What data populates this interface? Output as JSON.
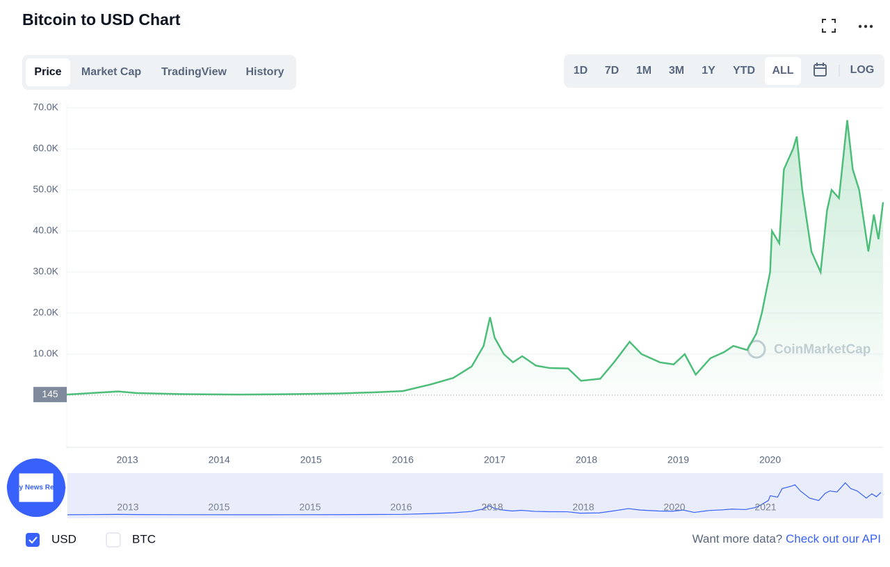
{
  "header": {
    "title": "Bitcoin to USD Chart"
  },
  "tabs": [
    "Price",
    "Market Cap",
    "TradingView",
    "History"
  ],
  "ranges": [
    "1D",
    "7D",
    "1M",
    "3M",
    "1Y",
    "YTD",
    "ALL"
  ],
  "log_button": "LOG",
  "currencies": [
    "USD",
    "BTC"
  ],
  "footer": {
    "prompt": "Want more data?",
    "link": "Check out our API"
  },
  "badge": "Daily News Recap",
  "chart_data": {
    "type": "line",
    "watermark": "CoinMarketCap",
    "x": [
      2012.34,
      2012.9,
      2013.1,
      2013.6,
      2014.2,
      2014.8,
      2015.3,
      2015.7,
      2016.0,
      2016.3,
      2016.55,
      2016.75,
      2016.88,
      2016.95,
      2017.0,
      2017.1,
      2017.2,
      2017.3,
      2017.45,
      2017.6,
      2017.8,
      2017.94,
      2018.15,
      2018.3,
      2018.47,
      2018.6,
      2018.8,
      2018.95,
      2019.07,
      2019.19,
      2019.35,
      2019.5,
      2019.6,
      2019.75,
      2019.85,
      2019.91,
      2020.0,
      2020.02,
      2020.1,
      2020.15,
      2020.25,
      2020.29,
      2020.35,
      2020.45,
      2020.55,
      2020.62,
      2020.67,
      2020.75,
      2020.84,
      2020.9,
      2020.97,
      2021.07,
      2021.13,
      2021.18,
      2021.23
    ],
    "series": [
      {
        "name": "USD",
        "color": "#4dbd7a",
        "values": [
          145,
          900,
          500,
          250,
          150,
          250,
          400,
          700,
          1000,
          2600,
          4200,
          7000,
          12000,
          19000,
          14000,
          10000,
          8000,
          9500,
          7200,
          6600,
          6500,
          3500,
          4000,
          8000,
          13000,
          10000,
          8000,
          7500,
          10000,
          5000,
          9000,
          10500,
          12000,
          11000,
          15000,
          20000,
          30000,
          40000,
          37000,
          55000,
          60000,
          63000,
          50000,
          35000,
          30000,
          45000,
          50000,
          48000,
          67000,
          55000,
          50000,
          35000,
          44000,
          38000,
          47000
        ]
      }
    ],
    "reference_value": 145,
    "xlim": [
      2012.34,
      2021.23
    ],
    "xticks": [
      2013,
      2014,
      2015,
      2016,
      2017,
      2018,
      2019,
      2020
    ],
    "ylim": [
      0,
      70000
    ],
    "yticks": [
      {
        "value": 10000,
        "label": "10.0K"
      },
      {
        "value": 20000,
        "label": "20.0K"
      },
      {
        "value": 30000,
        "label": "30.0K"
      },
      {
        "value": 40000,
        "label": "40.0K"
      },
      {
        "value": 50000,
        "label": "50.0K"
      },
      {
        "value": 60000,
        "label": "60.0K"
      },
      {
        "value": 70000,
        "label": "70.0K"
      }
    ],
    "grid": true,
    "navigator_labels": [
      "2013",
      "2015",
      "2015",
      "2016",
      "2018",
      "2018",
      "2020",
      "2021"
    ]
  }
}
